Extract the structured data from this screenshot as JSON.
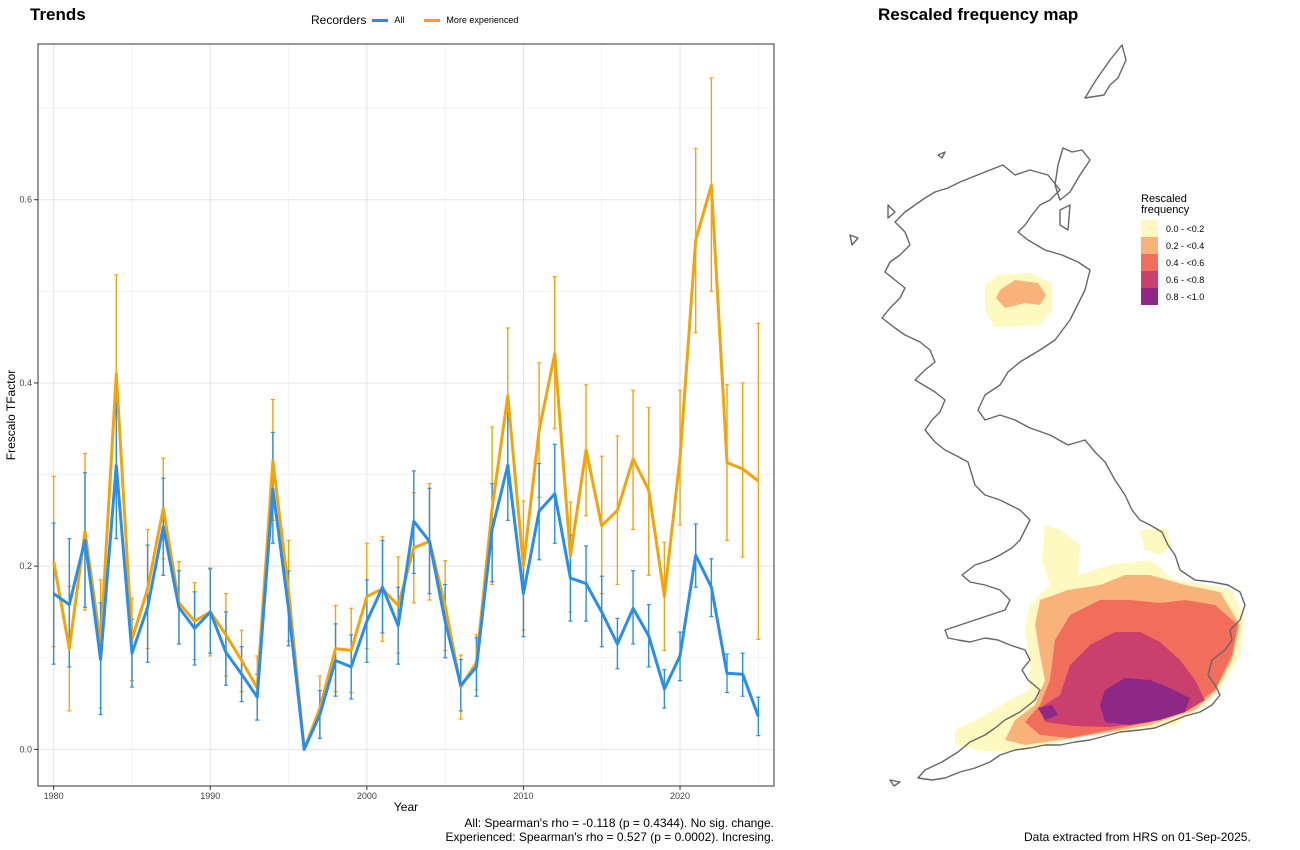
{
  "trends_title": "Trends",
  "map_title": "Rescaled frequency map",
  "legend": {
    "title": "Recorders",
    "items": [
      {
        "label": "All",
        "color": "#2a8ee8"
      },
      {
        "label": "More experienced",
        "color": "#f5a30c"
      }
    ]
  },
  "stats": {
    "all": "All: Spearman's rho = -0.118 (p = 0.4344). No sig. change.",
    "experienced": "Experienced: Spearman's rho = 0.527 (p = 0.0002). Incresing."
  },
  "footer": "Data extracted from HRS on 01-Sep-2025.",
  "map_legend": {
    "title_line1": "Rescaled",
    "title_line2": "frequency",
    "items": [
      {
        "label": "0.0 - <0.2",
        "color": "#fdf9c0"
      },
      {
        "label": "0.2 - <0.4",
        "color": "#f9b27a"
      },
      {
        "label": "0.4 - <0.6",
        "color": "#f16e5c"
      },
      {
        "label": "0.6 - <0.8",
        "color": "#c9406e"
      },
      {
        "label": "0.8 - <1.0",
        "color": "#8d2887"
      }
    ]
  },
  "chart_data": {
    "type": "line",
    "xlabel": "Year",
    "ylabel": "Frescalo TFactor",
    "xlim": [
      1979,
      2026
    ],
    "ylim": [
      -0.04,
      0.77
    ],
    "xticks": [
      1980,
      1990,
      2000,
      2010,
      2020
    ],
    "yticks": [
      0.0,
      0.2,
      0.4,
      0.6
    ],
    "grid": true,
    "legend_position": "top",
    "x": [
      1980,
      1981,
      1982,
      1983,
      1984,
      1985,
      1986,
      1987,
      1988,
      1989,
      1990,
      1991,
      1992,
      1993,
      1994,
      1995,
      1996,
      1997,
      1998,
      1999,
      2000,
      2001,
      2002,
      2003,
      2004,
      2005,
      2006,
      2007,
      2008,
      2009,
      2010,
      2011,
      2012,
      2013,
      2014,
      2015,
      2016,
      2017,
      2018,
      2019,
      2020,
      2021,
      2022,
      2023,
      2024,
      2025
    ],
    "series": [
      {
        "name": "All",
        "color": "#2a8ee8",
        "values": [
          0.17,
          0.158,
          0.228,
          0.098,
          0.31,
          0.105,
          0.155,
          0.243,
          0.155,
          0.132,
          0.15,
          0.106,
          0.082,
          0.057,
          0.284,
          0.153,
          0.0,
          0.038,
          0.097,
          0.09,
          0.14,
          0.177,
          0.135,
          0.249,
          0.227,
          0.14,
          0.07,
          0.09,
          0.24,
          0.31,
          0.17,
          0.26,
          0.279,
          0.187,
          0.181,
          0.15,
          0.115,
          0.154,
          0.124,
          0.066,
          0.102,
          0.212,
          0.177,
          0.083,
          0.082,
          0.036
        ],
        "lower": [
          0.093,
          0.09,
          0.155,
          0.038,
          0.23,
          0.068,
          0.095,
          0.19,
          0.115,
          0.092,
          0.105,
          0.07,
          0.052,
          0.032,
          0.225,
          0.113,
          0.0,
          0.012,
          0.058,
          0.055,
          0.095,
          0.127,
          0.093,
          0.192,
          0.17,
          0.1,
          0.042,
          0.058,
          0.183,
          0.25,
          0.123,
          0.207,
          0.225,
          0.14,
          0.14,
          0.112,
          0.088,
          0.115,
          0.09,
          0.045,
          0.075,
          0.177,
          0.145,
          0.062,
          0.058,
          0.015
        ],
        "upper": [
          0.247,
          0.23,
          0.302,
          0.16,
          0.395,
          0.142,
          0.223,
          0.296,
          0.195,
          0.172,
          0.197,
          0.15,
          0.112,
          0.082,
          0.346,
          0.195,
          0.0,
          0.064,
          0.137,
          0.125,
          0.185,
          0.228,
          0.177,
          0.304,
          0.285,
          0.18,
          0.098,
          0.122,
          0.29,
          0.367,
          0.215,
          0.312,
          0.333,
          0.234,
          0.222,
          0.189,
          0.143,
          0.195,
          0.158,
          0.087,
          0.128,
          0.246,
          0.208,
          0.104,
          0.105,
          0.057
        ]
      },
      {
        "name": "More experienced",
        "color": "#f5a30c",
        "values": [
          0.205,
          0.11,
          0.238,
          0.115,
          0.41,
          0.12,
          0.175,
          0.263,
          0.16,
          0.14,
          0.15,
          0.125,
          0.097,
          0.067,
          0.315,
          0.173,
          0.0,
          0.045,
          0.11,
          0.108,
          0.167,
          0.175,
          0.157,
          0.22,
          0.227,
          0.157,
          0.068,
          0.095,
          0.263,
          0.386,
          0.2,
          0.348,
          0.432,
          0.211,
          0.327,
          0.244,
          0.261,
          0.317,
          0.283,
          0.167,
          0.318,
          0.556,
          0.616,
          0.313,
          0.306,
          0.293
        ],
        "lower": [
          0.112,
          0.042,
          0.152,
          0.045,
          0.302,
          0.075,
          0.11,
          0.208,
          0.115,
          0.098,
          0.102,
          0.08,
          0.063,
          0.032,
          0.25,
          0.118,
          0.0,
          0.012,
          0.063,
          0.062,
          0.11,
          0.118,
          0.105,
          0.16,
          0.163,
          0.108,
          0.033,
          0.065,
          0.18,
          0.31,
          0.13,
          0.275,
          0.35,
          0.15,
          0.255,
          0.17,
          0.18,
          0.24,
          0.19,
          0.108,
          0.245,
          0.455,
          0.5,
          0.228,
          0.21,
          0.12
        ],
        "upper": [
          0.298,
          0.178,
          0.323,
          0.185,
          0.518,
          0.165,
          0.24,
          0.318,
          0.205,
          0.182,
          0.198,
          0.17,
          0.13,
          0.102,
          0.382,
          0.228,
          0.0,
          0.08,
          0.157,
          0.154,
          0.225,
          0.232,
          0.21,
          0.28,
          0.29,
          0.206,
          0.103,
          0.125,
          0.352,
          0.46,
          0.271,
          0.422,
          0.516,
          0.27,
          0.398,
          0.32,
          0.342,
          0.392,
          0.373,
          0.226,
          0.392,
          0.656,
          0.733,
          0.398,
          0.4,
          0.465
        ]
      }
    ]
  }
}
